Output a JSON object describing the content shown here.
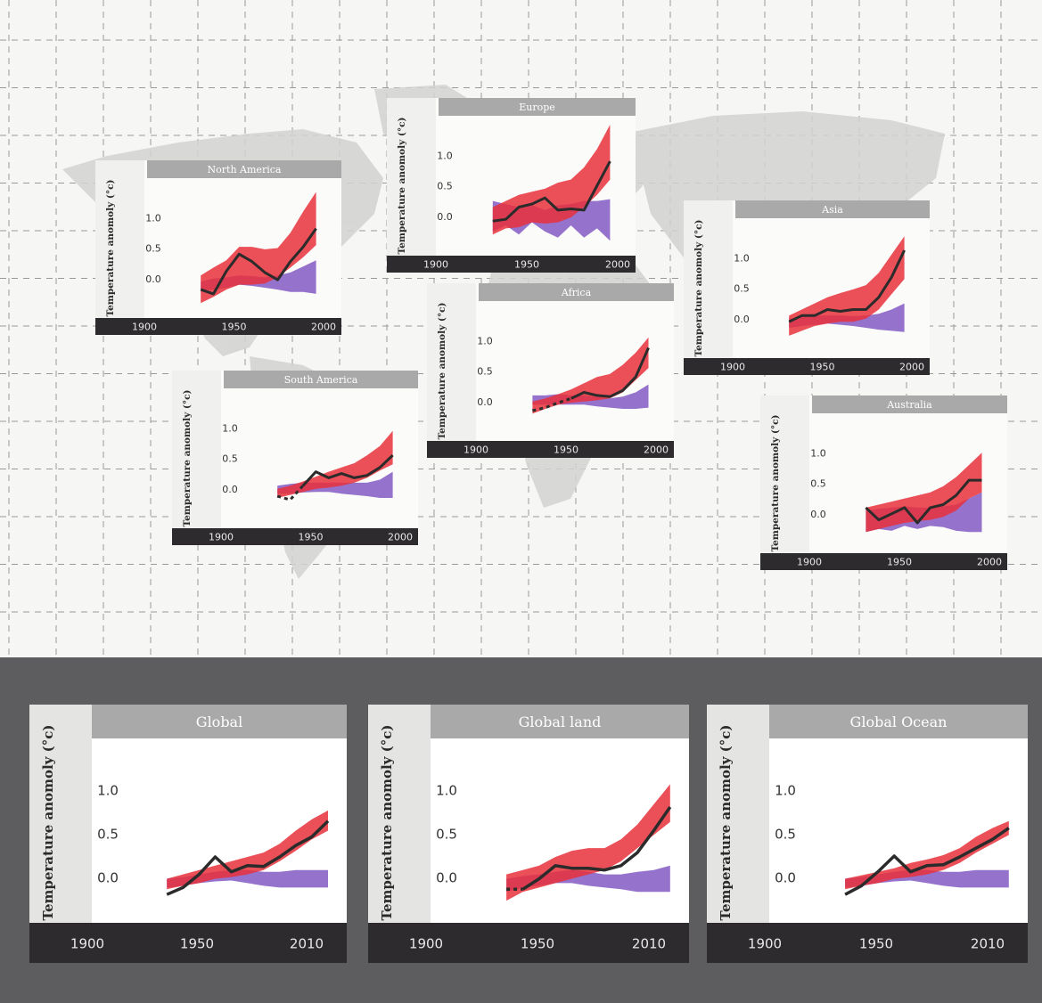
{
  "colors": {
    "natural": "#8a63c7",
    "all_forcing": "#e8303a",
    "observed": "#2b2b2b",
    "title_bar": "#a9a9a9",
    "axis_bar": "#2d2b2d",
    "bottom_bg": "#5d5d5f"
  },
  "chart_data": [
    {
      "name": "North America",
      "type": "line",
      "ylabel": "Temperature anomoly (°c)",
      "xticks": [
        "1900",
        "1950",
        "2000"
      ],
      "yticks": [
        "1.0",
        "0.5",
        "0.0"
      ],
      "xlim": [
        1880,
        2010
      ],
      "ylim": [
        -0.5,
        1.5
      ],
      "x": [
        1910,
        1920,
        1930,
        1940,
        1950,
        1960,
        1970,
        1980,
        1990,
        2000
      ],
      "observed": [
        -0.18,
        -0.25,
        0.12,
        0.4,
        0.28,
        0.1,
        -0.02,
        0.28,
        0.52,
        0.82
      ],
      "all_forcing_band": {
        "low": [
          -0.4,
          -0.3,
          -0.18,
          -0.1,
          -0.1,
          -0.08,
          0.02,
          0.18,
          0.35,
          0.55
        ],
        "high": [
          0.05,
          0.18,
          0.3,
          0.52,
          0.52,
          0.48,
          0.5,
          0.75,
          1.1,
          1.42
        ]
      },
      "natural_band": {
        "low": [
          -0.2,
          -0.18,
          -0.15,
          -0.1,
          -0.12,
          -0.15,
          -0.18,
          -0.22,
          -0.22,
          -0.25
        ],
        "high": [
          -0.05,
          0.0,
          0.02,
          0.05,
          0.04,
          0.02,
          0.05,
          0.1,
          0.2,
          0.3
        ]
      }
    },
    {
      "name": "Europe",
      "type": "line",
      "ylabel": "Temperature anomoly (°c)",
      "xticks": [
        "1900",
        "1950",
        "2000"
      ],
      "yticks": [
        "1.0",
        "0.5",
        "0.0"
      ],
      "xlim": [
        1880,
        2010
      ],
      "ylim": [
        -0.5,
        1.5
      ],
      "x": [
        1910,
        1920,
        1930,
        1940,
        1950,
        1960,
        1970,
        1980,
        1990,
        2000
      ],
      "observed": [
        -0.08,
        -0.05,
        0.15,
        0.2,
        0.3,
        0.1,
        0.12,
        0.1,
        0.5,
        0.9
      ],
      "all_forcing_band": {
        "low": [
          -0.3,
          -0.2,
          -0.18,
          -0.1,
          -0.12,
          -0.1,
          -0.02,
          0.15,
          0.35,
          0.6
        ],
        "high": [
          0.15,
          0.25,
          0.35,
          0.4,
          0.45,
          0.55,
          0.6,
          0.8,
          1.1,
          1.5
        ]
      },
      "natural_band": {
        "low": [
          -0.25,
          -0.15,
          -0.3,
          -0.1,
          -0.25,
          -0.35,
          -0.15,
          -0.35,
          -0.2,
          -0.4
        ],
        "high": [
          0.25,
          0.2,
          0.15,
          0.18,
          0.1,
          0.18,
          0.2,
          0.25,
          0.25,
          0.28
        ]
      }
    },
    {
      "name": "Asia",
      "type": "line",
      "ylabel": "Temperature anomoly (°c)",
      "xticks": [
        "1900",
        "1950",
        "2000"
      ],
      "yticks": [
        "1.0",
        "0.5",
        "0.0"
      ],
      "xlim": [
        1880,
        2010
      ],
      "ylim": [
        -0.5,
        1.5
      ],
      "x": [
        1910,
        1920,
        1930,
        1940,
        1950,
        1960,
        1970,
        1980,
        1990,
        2000
      ],
      "observed": [
        -0.05,
        0.05,
        0.05,
        0.15,
        0.12,
        0.15,
        0.15,
        0.35,
        0.68,
        1.12
      ],
      "all_forcing_band": {
        "low": [
          -0.28,
          -0.2,
          -0.12,
          -0.08,
          -0.05,
          -0.05,
          0.0,
          0.15,
          0.4,
          0.65
        ],
        "high": [
          0.05,
          0.15,
          0.25,
          0.35,
          0.42,
          0.48,
          0.55,
          0.75,
          1.05,
          1.35
        ]
      },
      "natural_band": {
        "low": [
          -0.15,
          -0.12,
          -0.1,
          -0.08,
          -0.1,
          -0.12,
          -0.15,
          -0.18,
          -0.2,
          -0.22
        ],
        "high": [
          0.0,
          0.03,
          0.05,
          0.05,
          0.05,
          0.04,
          0.05,
          0.08,
          0.15,
          0.25
        ]
      }
    },
    {
      "name": "Africa",
      "type": "line",
      "ylabel": "Temperature anomoly (°c)",
      "xticks": [
        "1900",
        "1950",
        "2000"
      ],
      "yticks": [
        "1.0",
        "0.5",
        "0.0"
      ],
      "xlim": [
        1880,
        2010
      ],
      "ylim": [
        -0.5,
        1.5
      ],
      "x": [
        1910,
        1920,
        1930,
        1940,
        1950,
        1960,
        1970,
        1980,
        1990,
        2000
      ],
      "observed": [
        -0.15,
        -0.1,
        -0.02,
        0.05,
        0.15,
        0.1,
        0.08,
        0.18,
        0.4,
        0.88
      ],
      "observed_dashed_until": 1940,
      "all_forcing_band": {
        "low": [
          -0.2,
          -0.12,
          -0.05,
          -0.02,
          0.0,
          0.02,
          0.05,
          0.15,
          0.35,
          0.55
        ],
        "high": [
          0.0,
          0.05,
          0.12,
          0.2,
          0.3,
          0.4,
          0.45,
          0.6,
          0.8,
          1.05
        ]
      },
      "natural_band": {
        "low": [
          -0.05,
          -0.05,
          -0.05,
          -0.05,
          -0.05,
          -0.08,
          -0.1,
          -0.12,
          -0.12,
          -0.1
        ],
        "high": [
          0.1,
          0.1,
          0.12,
          0.1,
          0.1,
          0.08,
          0.05,
          0.08,
          0.15,
          0.28
        ]
      }
    },
    {
      "name": "South America",
      "type": "line",
      "ylabel": "Temperature anomoly (°c)",
      "xticks": [
        "1900",
        "1950",
        "2000"
      ],
      "yticks": [
        "1.0",
        "0.5",
        "0.0"
      ],
      "xlim": [
        1880,
        2010
      ],
      "ylim": [
        -0.5,
        1.5
      ],
      "x": [
        1910,
        1920,
        1930,
        1940,
        1950,
        1960,
        1970,
        1980,
        1990,
        2000
      ],
      "observed": [
        -0.12,
        -0.18,
        0.05,
        0.28,
        0.18,
        0.25,
        0.18,
        0.22,
        0.35,
        0.55
      ],
      "observed_dashed_until": 1935,
      "all_forcing_band": {
        "low": [
          -0.15,
          -0.1,
          -0.05,
          0.0,
          0.02,
          0.05,
          0.1,
          0.18,
          0.3,
          0.4
        ],
        "high": [
          0.0,
          0.05,
          0.12,
          0.2,
          0.28,
          0.35,
          0.42,
          0.55,
          0.7,
          0.95
        ]
      },
      "natural_band": {
        "low": [
          -0.08,
          -0.08,
          -0.06,
          -0.05,
          -0.05,
          -0.08,
          -0.1,
          -0.12,
          -0.15,
          -0.15
        ],
        "high": [
          0.05,
          0.08,
          0.1,
          0.1,
          0.1,
          0.1,
          0.1,
          0.1,
          0.15,
          0.28
        ]
      }
    },
    {
      "name": "Australia",
      "type": "line",
      "ylabel": "Temperature anomoly (°c)",
      "xticks": [
        "1900",
        "1950",
        "2000"
      ],
      "yticks": [
        "1.0",
        "0.5",
        "0.0"
      ],
      "xlim": [
        1880,
        2010
      ],
      "ylim": [
        -0.5,
        1.5
      ],
      "x": [
        1910,
        1920,
        1930,
        1940,
        1950,
        1960,
        1970,
        1980,
        1990,
        2000
      ],
      "observed": [
        0.1,
        -0.1,
        0.0,
        0.1,
        -0.15,
        0.1,
        0.15,
        0.3,
        0.55,
        0.55
      ],
      "all_forcing_band": {
        "low": [
          -0.3,
          -0.25,
          -0.2,
          -0.15,
          -0.12,
          -0.1,
          -0.05,
          0.05,
          0.25,
          0.35
        ],
        "high": [
          0.1,
          0.15,
          0.2,
          0.25,
          0.3,
          0.35,
          0.45,
          0.6,
          0.8,
          1.0
        ]
      },
      "natural_band": {
        "low": [
          -0.3,
          -0.25,
          -0.28,
          -0.2,
          -0.25,
          -0.2,
          -0.22,
          -0.28,
          -0.3,
          -0.3
        ],
        "high": [
          0.05,
          0.08,
          0.1,
          0.12,
          0.1,
          0.1,
          0.12,
          0.15,
          0.25,
          0.35
        ]
      }
    },
    {
      "name": "Global",
      "type": "line",
      "ylabel": "Temperature anomoly (°c)",
      "xticks": [
        "1900",
        "1950",
        "2010"
      ],
      "yticks": [
        "1.0",
        "0.5",
        "0.0"
      ],
      "xlim": [
        1880,
        2015
      ],
      "ylim": [
        -0.3,
        1.4
      ],
      "x": [
        1910,
        1920,
        1930,
        1940,
        1950,
        1960,
        1970,
        1980,
        1990,
        2000,
        2010
      ],
      "observed": [
        -0.18,
        -0.1,
        0.05,
        0.25,
        0.08,
        0.15,
        0.14,
        0.25,
        0.38,
        0.48,
        0.66
      ],
      "all_forcing_band": {
        "low": [
          -0.12,
          -0.08,
          -0.05,
          0.0,
          0.02,
          0.05,
          0.1,
          0.2,
          0.32,
          0.45,
          0.55
        ],
        "high": [
          0.0,
          0.05,
          0.1,
          0.15,
          0.2,
          0.25,
          0.3,
          0.4,
          0.55,
          0.68,
          0.78
        ]
      },
      "natural_band": {
        "low": [
          -0.1,
          -0.08,
          -0.05,
          -0.03,
          -0.02,
          -0.05,
          -0.08,
          -0.1,
          -0.1,
          -0.1,
          -0.1
        ],
        "high": [
          0.0,
          0.02,
          0.05,
          0.08,
          0.1,
          0.1,
          0.08,
          0.08,
          0.1,
          0.1,
          0.1
        ]
      }
    },
    {
      "name": "Global land",
      "type": "line",
      "ylabel": "Temperature anomoly (°c)",
      "xticks": [
        "1900",
        "1950",
        "2010"
      ],
      "yticks": [
        "1.0",
        "0.5",
        "0.0"
      ],
      "xlim": [
        1880,
        2015
      ],
      "ylim": [
        -0.3,
        1.4
      ],
      "x": [
        1910,
        1920,
        1930,
        1940,
        1950,
        1960,
        1970,
        1980,
        1990,
        2000,
        2010
      ],
      "observed": [
        -0.12,
        -0.12,
        0.0,
        0.15,
        0.12,
        0.12,
        0.1,
        0.15,
        0.3,
        0.55,
        0.82
      ],
      "observed_dashed_until": 1925,
      "all_forcing_band": {
        "low": [
          -0.25,
          -0.15,
          -0.1,
          -0.05,
          0.0,
          0.05,
          0.1,
          0.2,
          0.35,
          0.5,
          0.65
        ],
        "high": [
          0.05,
          0.1,
          0.15,
          0.25,
          0.32,
          0.35,
          0.35,
          0.45,
          0.62,
          0.85,
          1.08
        ]
      },
      "natural_band": {
        "low": [
          -0.15,
          -0.1,
          -0.08,
          -0.05,
          -0.05,
          -0.08,
          -0.1,
          -0.12,
          -0.15,
          -0.15,
          -0.15
        ],
        "high": [
          0.0,
          0.03,
          0.05,
          0.08,
          0.1,
          0.08,
          0.05,
          0.05,
          0.08,
          0.1,
          0.15
        ]
      }
    },
    {
      "name": "Global Ocean",
      "type": "line",
      "ylabel": "Temperature anomoly (°c)",
      "xticks": [
        "1900",
        "1950",
        "2010"
      ],
      "yticks": [
        "1.0",
        "0.5",
        "0.0"
      ],
      "xlim": [
        1880,
        2015
      ],
      "ylim": [
        -0.3,
        1.4
      ],
      "x": [
        1910,
        1920,
        1930,
        1940,
        1950,
        1960,
        1970,
        1980,
        1990,
        2000,
        2010
      ],
      "observed": [
        -0.18,
        -0.08,
        0.08,
        0.26,
        0.08,
        0.15,
        0.16,
        0.25,
        0.35,
        0.45,
        0.58
      ],
      "all_forcing_band": {
        "low": [
          -0.12,
          -0.08,
          -0.05,
          0.0,
          0.02,
          0.05,
          0.1,
          0.18,
          0.3,
          0.4,
          0.5
        ],
        "high": [
          0.0,
          0.04,
          0.08,
          0.12,
          0.18,
          0.22,
          0.27,
          0.35,
          0.48,
          0.58,
          0.66
        ]
      },
      "natural_band": {
        "low": [
          -0.1,
          -0.08,
          -0.05,
          -0.03,
          -0.02,
          -0.05,
          -0.08,
          -0.1,
          -0.1,
          -0.1,
          -0.1
        ],
        "high": [
          0.0,
          0.02,
          0.05,
          0.08,
          0.1,
          0.1,
          0.08,
          0.08,
          0.1,
          0.1,
          0.1
        ]
      }
    }
  ]
}
